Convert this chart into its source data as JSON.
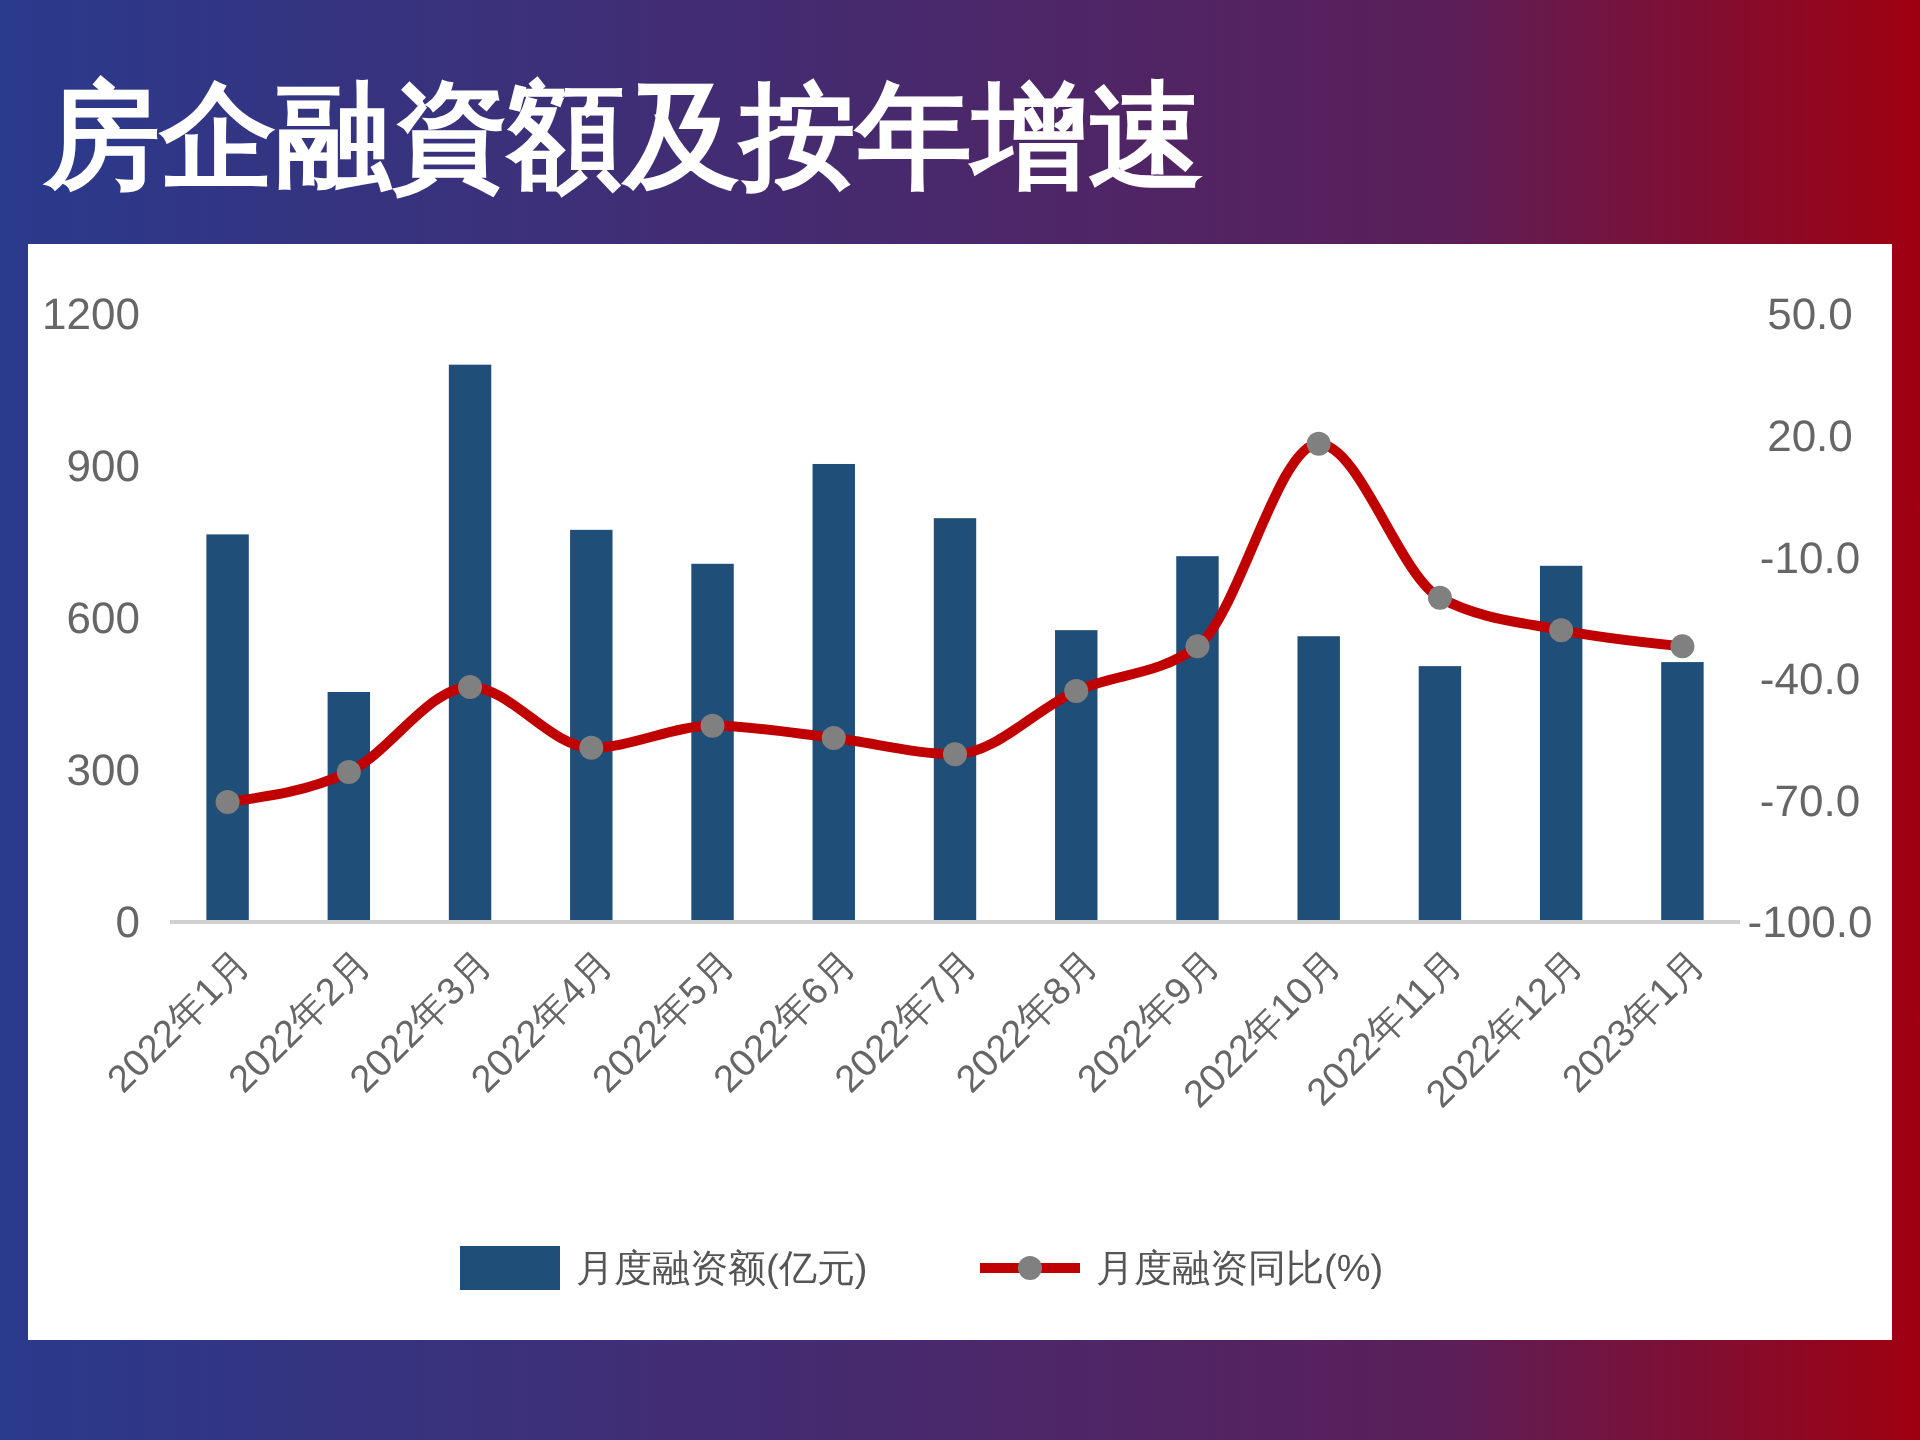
{
  "chart_data": {
    "type": "bar",
    "title": "房企融資額及按年增速",
    "categories": [
      "2022年1月",
      "2022年2月",
      "2022年3月",
      "2022年4月",
      "2022年5月",
      "2022年6月",
      "2022年7月",
      "2022年8月",
      "2022年9月",
      "2022年10月",
      "2022年11月",
      "2022年12月",
      "2023年1月"
    ],
    "series": [
      {
        "name": "月度融资额(亿元)",
        "color": "#1f4e79",
        "values": [
          765,
          454,
          1100,
          774,
          707,
          904,
          797,
          576,
          722,
          564,
          505,
          703,
          513
        ]
      },
      {
        "name": "月度融资同比(%)",
        "type": "line",
        "axis": "y2",
        "color": "#c00000",
        "marker": "circle",
        "values": [
          -70.4,
          -63,
          -42,
          -57,
          -51.6,
          -54.6,
          -58.6,
          -43,
          -32,
          18,
          -20,
          -28,
          -32
        ]
      }
    ],
    "ylim": [
      0,
      1200
    ],
    "yticks": [
      0,
      300,
      600,
      900,
      1200
    ],
    "y2lim": [
      -100,
      50
    ],
    "y2ticks": [
      {
        "value": -100,
        "label": "-100.0"
      },
      {
        "value": -70,
        "label": "-70.0"
      },
      {
        "value": -40,
        "label": "-40.0"
      },
      {
        "value": -10,
        "label": "-10.0"
      },
      {
        "value": 20,
        "label": "20.0"
      },
      {
        "value": 50,
        "label": "50.0"
      }
    ],
    "grid": false,
    "legend": "bottom"
  }
}
